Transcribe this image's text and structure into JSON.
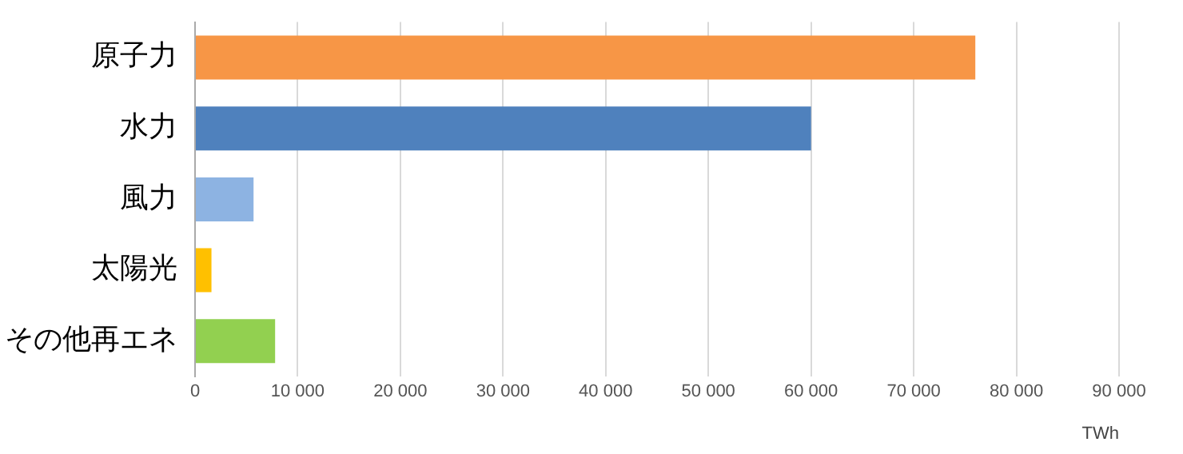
{
  "chart_data": {
    "type": "bar",
    "orientation": "horizontal",
    "categories": [
      "原子力",
      "水力",
      "風力",
      "太陽光",
      "その他再エネ"
    ],
    "values": [
      76000,
      60000,
      5700,
      1600,
      7800
    ],
    "colors": [
      "#f79646",
      "#4f81bd",
      "#8db3e2",
      "#ffc000",
      "#92d050"
    ],
    "xlim": [
      0,
      90000
    ],
    "xticks": [
      0,
      {
        "value": 10000,
        "label": "10 000"
      },
      {
        "value": 20000,
        "label": "20 000"
      },
      {
        "value": 30000,
        "label": "30 000"
      },
      {
        "value": 40000,
        "label": "40 000"
      },
      {
        "value": 50000,
        "label": "50 000"
      },
      {
        "value": 60000,
        "label": "60 000"
      },
      {
        "value": 70000,
        "label": "70 000"
      },
      {
        "value": 80000,
        "label": "80 000"
      },
      {
        "value": 90000,
        "label": "90 000"
      }
    ],
    "xlabel": "TWh",
    "grid": "x",
    "legend": false
  }
}
